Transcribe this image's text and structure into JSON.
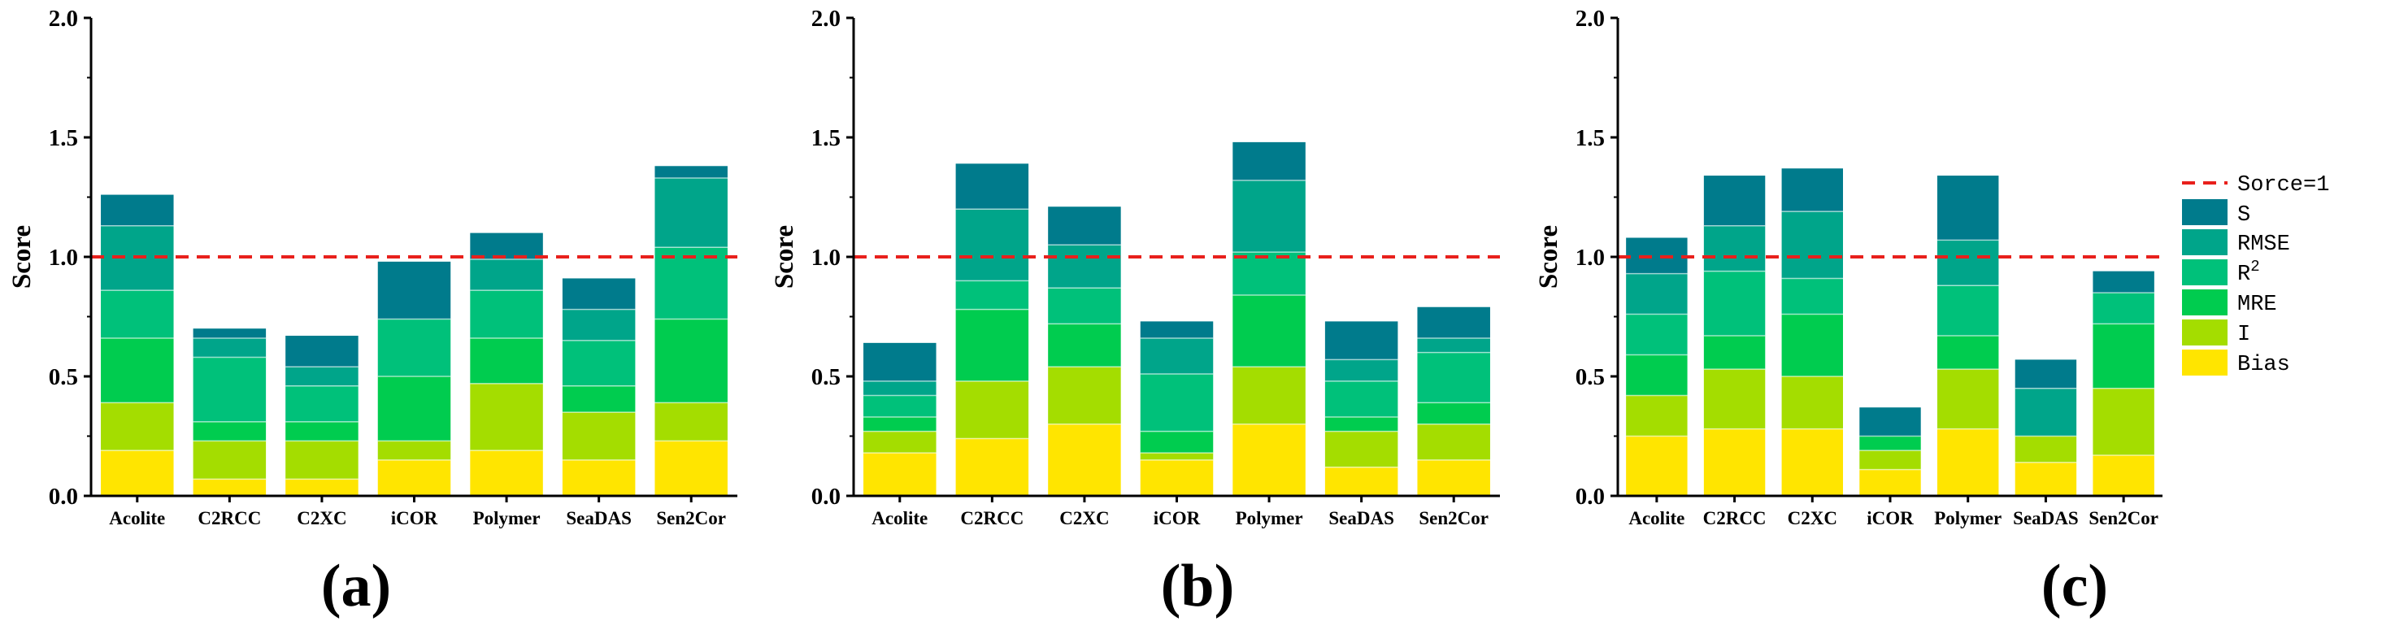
{
  "chart_data": [
    {
      "type": "bar",
      "stacked": true,
      "panel_label": "(a)",
      "ylabel": "Score",
      "ylim": [
        0,
        2.0
      ],
      "yticks": [
        "0.0",
        "0.5",
        "1.0",
        "1.5",
        "2.0"
      ],
      "reference_line": 1.0,
      "categories": [
        "Acolite",
        "C2RCC",
        "C2XC",
        "iCOR",
        "Polymer",
        "SeaDAS",
        "Sen2Cor"
      ],
      "series": [
        {
          "name": "Bias",
          "values": [
            0.19,
            0.07,
            0.07,
            0.15,
            0.19,
            0.15,
            0.23
          ]
        },
        {
          "name": "I",
          "values": [
            0.2,
            0.16,
            0.16,
            0.08,
            0.28,
            0.2,
            0.16
          ]
        },
        {
          "name": "MRE",
          "values": [
            0.27,
            0.08,
            0.08,
            0.27,
            0.19,
            0.11,
            0.35
          ]
        },
        {
          "name": "R2",
          "values": [
            0.2,
            0.27,
            0.15,
            0.24,
            0.2,
            0.19,
            0.3
          ]
        },
        {
          "name": "RMSE",
          "values": [
            0.27,
            0.08,
            0.08,
            0.0,
            0.13,
            0.13,
            0.29
          ]
        },
        {
          "name": "S",
          "values": [
            0.13,
            0.04,
            0.13,
            0.24,
            0.11,
            0.13,
            0.05
          ]
        }
      ]
    },
    {
      "type": "bar",
      "stacked": true,
      "panel_label": "(b)",
      "ylabel": "Score",
      "ylim": [
        0,
        2.0
      ],
      "yticks": [
        "0.0",
        "0.5",
        "1.0",
        "1.5",
        "2.0"
      ],
      "reference_line": 1.0,
      "categories": [
        "Acolite",
        "C2RCC",
        "C2XC",
        "iCOR",
        "Polymer",
        "SeaDAS",
        "Sen2Cor"
      ],
      "series": [
        {
          "name": "Bias",
          "values": [
            0.18,
            0.24,
            0.3,
            0.15,
            0.3,
            0.12,
            0.15
          ]
        },
        {
          "name": "I",
          "values": [
            0.09,
            0.24,
            0.24,
            0.03,
            0.24,
            0.15,
            0.15
          ]
        },
        {
          "name": "MRE",
          "values": [
            0.06,
            0.3,
            0.18,
            0.09,
            0.3,
            0.06,
            0.09
          ]
        },
        {
          "name": "R2",
          "values": [
            0.09,
            0.12,
            0.15,
            0.24,
            0.18,
            0.15,
            0.21
          ]
        },
        {
          "name": "RMSE",
          "values": [
            0.06,
            0.3,
            0.18,
            0.15,
            0.3,
            0.09,
            0.06
          ]
        },
        {
          "name": "S",
          "values": [
            0.16,
            0.19,
            0.16,
            0.07,
            0.16,
            0.16,
            0.13
          ]
        }
      ]
    },
    {
      "type": "bar",
      "stacked": true,
      "panel_label": "(c)",
      "ylabel": "Score",
      "ylim": [
        0,
        2.0
      ],
      "yticks": [
        "0.0",
        "0.5",
        "1.0",
        "1.5",
        "2.0"
      ],
      "reference_line": 1.0,
      "categories": [
        "Acolite",
        "C2RCC",
        "C2XC",
        "iCOR",
        "Polymer",
        "SeaDAS",
        "Sen2Cor"
      ],
      "series": [
        {
          "name": "Bias",
          "values": [
            0.25,
            0.28,
            0.28,
            0.11,
            0.28,
            0.14,
            0.17
          ]
        },
        {
          "name": "I",
          "values": [
            0.17,
            0.25,
            0.22,
            0.08,
            0.25,
            0.11,
            0.28
          ]
        },
        {
          "name": "MRE",
          "values": [
            0.17,
            0.14,
            0.26,
            0.06,
            0.14,
            0.0,
            0.27
          ]
        },
        {
          "name": "R2",
          "values": [
            0.17,
            0.27,
            0.15,
            0.0,
            0.21,
            0.0,
            0.13
          ]
        },
        {
          "name": "RMSE",
          "values": [
            0.17,
            0.19,
            0.28,
            0.0,
            0.19,
            0.2,
            0.0
          ]
        },
        {
          "name": "S",
          "values": [
            0.15,
            0.21,
            0.18,
            0.12,
            0.27,
            0.12,
            0.09
          ]
        }
      ]
    }
  ],
  "legend": {
    "reference_label": "Sorce=1",
    "items": [
      {
        "key": "S",
        "label": "S",
        "superscript": ""
      },
      {
        "key": "RMSE",
        "label": "RMSE",
        "superscript": ""
      },
      {
        "key": "R2",
        "label": "R",
        "superscript": "2"
      },
      {
        "key": "MRE",
        "label": "MRE",
        "superscript": ""
      },
      {
        "key": "I",
        "label": "I",
        "superscript": ""
      },
      {
        "key": "Bias",
        "label": "Bias",
        "superscript": ""
      }
    ]
  },
  "colors": {
    "Bias": "#ffe500",
    "I": "#a4dd00",
    "MRE": "#00cc4f",
    "R2": "#00c17a",
    "RMSE": "#00a58a",
    "S": "#007b8c",
    "reference_line": "#e8201c",
    "axis": "#000000",
    "segment_divider": "#ffffff"
  }
}
